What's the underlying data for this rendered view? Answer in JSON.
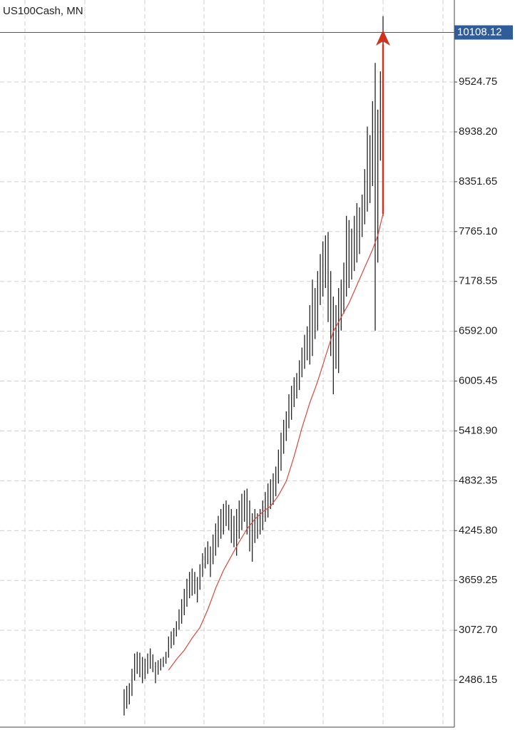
{
  "chart_data": {
    "type": "ohlc",
    "title": "US100Cash, MN",
    "low": [
      2070,
      2150,
      2200,
      2300,
      2480,
      2560,
      2520,
      2450,
      2500,
      2560,
      2620,
      2580,
      2450,
      2550,
      2600,
      2640,
      2680,
      2750,
      2860,
      2900,
      3000,
      3080,
      3150,
      3250,
      3350,
      3450,
      3480,
      3500,
      3400,
      3550,
      3700,
      3800,
      3850,
      3700,
      3850,
      3950,
      4050,
      4150,
      4200,
      4300,
      4250,
      4100,
      4050,
      3950,
      4150,
      4250,
      4350,
      4200,
      4000,
      3880,
      4100,
      4150,
      4200,
      4250,
      4350,
      4400,
      4500,
      4550,
      4650,
      4800,
      4950,
      5150,
      5300,
      5450,
      5550,
      5700,
      5800,
      5900,
      6050,
      6150,
      6250,
      6200,
      6300,
      6500,
      6600,
      6900,
      7000,
      7100,
      6700,
      6300,
      5850,
      6150,
      6100,
      6600,
      6800,
      7000,
      7100,
      7200,
      7300,
      7400,
      7500,
      7700,
      7850,
      8000,
      8100,
      8300,
      6600,
      7400,
      8600,
      7950
    ],
    "high": [
      2380,
      2420,
      2450,
      2620,
      2800,
      2820,
      2810,
      2760,
      2740,
      2800,
      2860,
      2790,
      2700,
      2720,
      2740,
      2760,
      2820,
      3000,
      3060,
      3100,
      3180,
      3320,
      3440,
      3560,
      3680,
      3760,
      3800,
      3760,
      3700,
      3850,
      3980,
      4050,
      4120,
      4060,
      4200,
      4330,
      4420,
      4500,
      4560,
      4600,
      4550,
      4500,
      4420,
      4500,
      4600,
      4680,
      4720,
      4740,
      4600,
      4450,
      4500,
      4450,
      4500,
      4600,
      4700,
      4800,
      4850,
      4920,
      5000,
      5200,
      5400,
      5550,
      5650,
      5850,
      5950,
      6050,
      6100,
      6250,
      6400,
      6550,
      6650,
      6900,
      7200,
      7100,
      7300,
      7500,
      7650,
      7720,
      7760,
      7300,
      7000,
      6900,
      7100,
      7200,
      7400,
      7950,
      7900,
      7800,
      7950,
      8100,
      8050,
      8200,
      8500,
      9000,
      8900,
      9300,
      9750,
      9200,
      9650,
      10300
    ],
    "bar_color": "#222222",
    "ma": {
      "color": "#e0463a",
      "values": [
        null,
        null,
        null,
        null,
        null,
        null,
        null,
        null,
        null,
        null,
        null,
        null,
        null,
        null,
        null,
        null,
        null,
        2604,
        2646,
        2688,
        2730,
        2766,
        2802,
        2838,
        2886,
        2933,
        2981,
        3023,
        3065,
        3107,
        3177,
        3247,
        3317,
        3401,
        3484,
        3568,
        3638,
        3708,
        3778,
        3834,
        3890,
        3946,
        4002,
        4058,
        4114,
        4164,
        4215,
        4265,
        4304,
        4343,
        4382,
        4410,
        4438,
        4466,
        4488,
        4511,
        4533,
        4575,
        4617,
        4659,
        4715,
        4771,
        4827,
        4925,
        5022,
        5120,
        5232,
        5344,
        5456,
        5554,
        5652,
        5750,
        5834,
        5917,
        6001,
        6099,
        6197,
        6295,
        6393,
        6491,
        6589,
        6645,
        6701,
        6757,
        6813,
        6868,
        6924,
        6994,
        7064,
        7134,
        7204,
        7274,
        7344,
        7414,
        7483,
        7553,
        7637,
        7721,
        7847,
        7973
      ]
    },
    "last_price": 10108.12,
    "last_price_color": "#2f5d9a",
    "ylim": [
      1933,
      10490
    ],
    "yticks": [
      {
        "value": 2486.15,
        "label": "2486.15"
      },
      {
        "value": 3072.7,
        "label": "3072.70"
      },
      3659.25,
      {
        "value": 4245.8,
        "label": "4245.80"
      },
      4832.35,
      {
        "value": 5418.9,
        "label": "5418.90"
      },
      6005.45,
      {
        "value": 6592,
        "label": "6592.00"
      },
      7178.55,
      {
        "value": 7765.1,
        "label": "7765.10"
      },
      8351.65,
      {
        "value": 8938.2,
        "label": "8938.20"
      },
      9524.75
    ],
    "grid": true
  }
}
